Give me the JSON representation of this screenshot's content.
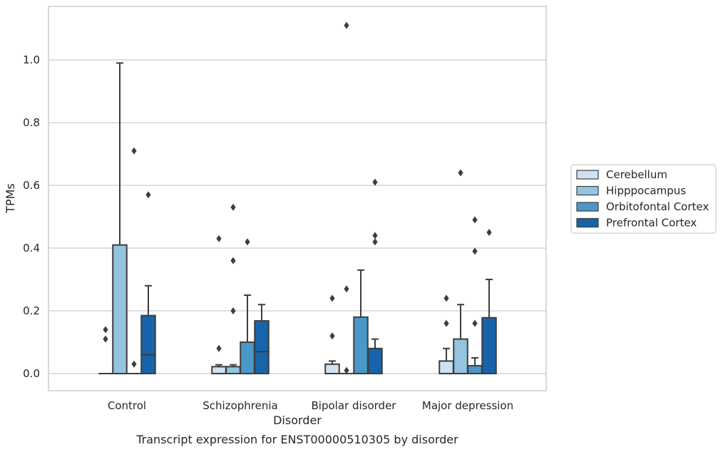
{
  "chart_data": {
    "type": "box",
    "title": "",
    "caption": "Transcript expression for ENST00000510305 by disorder",
    "xlabel": "Disorder",
    "ylabel": "TPMs",
    "ylim": [
      -0.055,
      1.16
    ],
    "yticks": [
      0.0,
      0.2,
      0.4,
      0.6,
      0.8,
      1.0
    ],
    "ytick_labels": [
      "0.0",
      "0.2",
      "0.4",
      "0.6",
      "0.8",
      "1.0"
    ],
    "grid": "horizontal",
    "legend_position": "right",
    "categories": [
      "Control",
      "Schizophrenia",
      "Bipolar disorder",
      "Major depression"
    ],
    "series": [
      {
        "name": "Cerebellum",
        "color": "#d0e1f2",
        "boxes": [
          {
            "min": 0.0,
            "q1": 0.0,
            "median": 0.0,
            "q3": 0.0,
            "max": 0.0,
            "outliers": [
              0.11,
              0.14
            ]
          },
          {
            "min": 0.0,
            "q1": 0.0,
            "median": 0.0,
            "q3": 0.022,
            "max": 0.028,
            "outliers": [
              0.08,
              0.43
            ]
          },
          {
            "min": 0.0,
            "q1": 0.0,
            "median": 0.0,
            "q3": 0.03,
            "max": 0.04,
            "outliers": [
              0.12,
              0.24
            ]
          },
          {
            "min": 0.0,
            "q1": 0.0,
            "median": 0.0,
            "q3": 0.04,
            "max": 0.08,
            "outliers": [
              0.16,
              0.24
            ]
          }
        ]
      },
      {
        "name": "Hipppocampus",
        "color": "#94c4df",
        "boxes": [
          {
            "min": 0.0,
            "q1": 0.0,
            "median": 0.0,
            "q3": 0.41,
            "max": 0.99,
            "outliers": []
          },
          {
            "min": 0.0,
            "q1": 0.0,
            "median": 0.0,
            "q3": 0.022,
            "max": 0.028,
            "outliers": [
              0.2,
              0.36,
              0.53
            ]
          },
          {
            "min": 0.0,
            "q1": 0.0,
            "median": 0.0,
            "q3": 0.0,
            "max": 0.0,
            "outliers": [
              0.01,
              0.27,
              1.11
            ]
          },
          {
            "min": 0.0,
            "q1": 0.0,
            "median": 0.0,
            "q3": 0.11,
            "max": 0.22,
            "outliers": [
              0.64
            ]
          }
        ]
      },
      {
        "name": "Orbitofontal Cortex",
        "color": "#4a98c9",
        "boxes": [
          {
            "min": 0.0,
            "q1": 0.0,
            "median": 0.0,
            "q3": 0.0,
            "max": 0.0,
            "outliers": [
              0.03,
              0.71
            ]
          },
          {
            "min": 0.0,
            "q1": 0.0,
            "median": 0.0,
            "q3": 0.1,
            "max": 0.25,
            "outliers": [
              0.42
            ]
          },
          {
            "min": 0.0,
            "q1": 0.0,
            "median": 0.0,
            "q3": 0.18,
            "max": 0.33,
            "outliers": []
          },
          {
            "min": 0.0,
            "q1": 0.0,
            "median": 0.0,
            "q3": 0.025,
            "max": 0.05,
            "outliers": [
              0.16,
              0.39,
              0.49
            ]
          }
        ]
      },
      {
        "name": "Prefrontal Cortex",
        "color": "#1764ab",
        "boxes": [
          {
            "min": 0.0,
            "q1": 0.0,
            "median": 0.06,
            "q3": 0.185,
            "max": 0.28,
            "outliers": [
              0.57
            ]
          },
          {
            "min": 0.0,
            "q1": 0.0,
            "median": 0.07,
            "q3": 0.168,
            "max": 0.22,
            "outliers": []
          },
          {
            "min": 0.0,
            "q1": 0.0,
            "median": 0.0,
            "q3": 0.08,
            "max": 0.11,
            "outliers": [
              0.42,
              0.44,
              0.61
            ]
          },
          {
            "min": 0.0,
            "q1": 0.0,
            "median": 0.0,
            "q3": 0.178,
            "max": 0.3,
            "outliers": [
              0.45
            ]
          }
        ]
      }
    ]
  }
}
